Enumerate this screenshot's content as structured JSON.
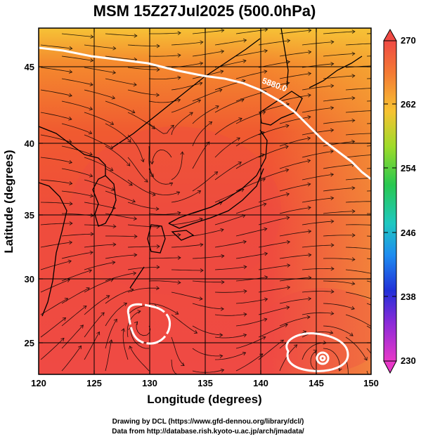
{
  "title": "MSM 15Z27Jul2025 (500.0hPa)",
  "x_axis": {
    "label": "Longitude (degrees)",
    "ticks": [
      "120",
      "125",
      "130",
      "135",
      "140",
      "145",
      "150"
    ]
  },
  "y_axis": {
    "label": "Latitude  (degrees)",
    "ticks": [
      "45",
      "40",
      "35",
      "30",
      "25"
    ]
  },
  "colorbar": {
    "ticks": [
      "270",
      "262",
      "254",
      "246",
      "238",
      "230"
    ]
  },
  "contour_label": "5880.0",
  "credits": {
    "line1": "Drawing by DCL (https://www.gfd-dennou.org/library/dcl/)",
    "line2": "Data from http://database.rish.kyoto-u.ac.jp/arch/jmadata/"
  },
  "chart_data": {
    "type": "heatmap",
    "title": "MSM 15Z27Jul2025 (500.0hPa)",
    "xlabel": "Longitude (degrees)",
    "ylabel": "Latitude  (degrees)",
    "xlim": [
      120,
      150
    ],
    "ylim": [
      22.7,
      47.7
    ],
    "colorbar": {
      "min": 230,
      "max": 270,
      "ticks": [
        270,
        262,
        254,
        246,
        238,
        230
      ]
    },
    "field_estimate_K": {
      "north_edge": 265,
      "japan_region": 267,
      "south_region": 268.5
    },
    "contour": {
      "value": 5880.0
    },
    "colors": {
      "field_warm": "#f25033",
      "field_hot": "#ef4a40",
      "field_cool_north": "#f6b63a",
      "contour": "#ffffff",
      "coast": "#000000"
    }
  }
}
